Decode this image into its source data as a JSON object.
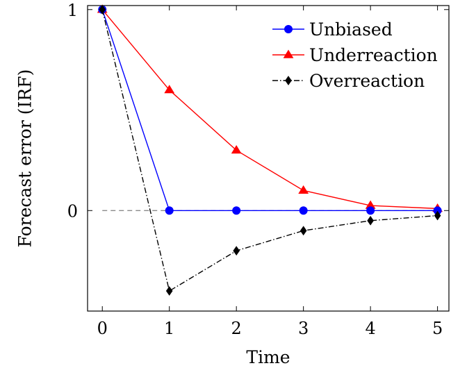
{
  "chart_data": {
    "type": "line",
    "title": "",
    "xlabel": "Time",
    "ylabel": "Forecast error (IRF)",
    "x": [
      0,
      1,
      2,
      3,
      4,
      5
    ],
    "xlim": [
      -0.22,
      5.17
    ],
    "ylim": [
      -0.5,
      1.02
    ],
    "xticks": [
      0,
      1,
      2,
      3,
      4,
      5
    ],
    "yticks": [
      0,
      1
    ],
    "grid": false,
    "legend_position": "top-right",
    "reference_line": {
      "y": 0,
      "style": "dashed",
      "color": "#7f7f7f"
    },
    "series": [
      {
        "name": "Unbiased",
        "values": [
          1,
          0,
          0,
          0,
          0,
          0
        ],
        "color": "#0000ff",
        "marker": "circle",
        "line_style": "solid"
      },
      {
        "name": "Underreaction",
        "values": [
          1,
          0.6,
          0.3,
          0.1,
          0.025,
          0.01
        ],
        "color": "#ff0000",
        "marker": "triangle",
        "line_style": "solid"
      },
      {
        "name": "Overreaction",
        "values": [
          1,
          -0.4,
          -0.2,
          -0.1,
          -0.05,
          -0.025
        ],
        "color": "#000000",
        "marker": "diamond",
        "line_style": "dash-dot"
      }
    ]
  }
}
